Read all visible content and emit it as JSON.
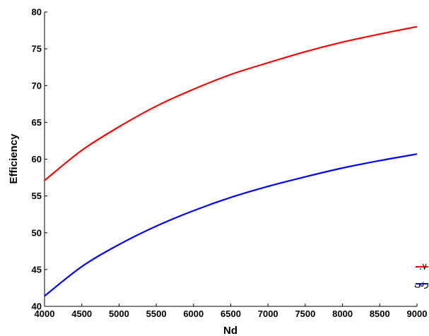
{
  "chart_data": {
    "type": "line",
    "title": "",
    "xlabel": "Nd",
    "ylabel": "Efficiency",
    "xlim": [
      4000,
      9000
    ],
    "ylim": [
      40,
      80
    ],
    "xticks": [
      4000,
      4500,
      5000,
      5500,
      6000,
      6500,
      7000,
      7500,
      8000,
      8500,
      9000
    ],
    "yticks": [
      40,
      45,
      50,
      55,
      60,
      65,
      70,
      75,
      80
    ],
    "grid": false,
    "legend_position": "bottom-right",
    "x": [
      4000,
      4500,
      5000,
      5500,
      6000,
      6500,
      7000,
      7500,
      8000,
      8500,
      9000
    ],
    "series": [
      {
        "name": "وجود مبدل حرارتی با ضریب عملکردی ۰.۷",
        "color": "#ff0000",
        "values": [
          57.1,
          61.2,
          64.4,
          67.2,
          69.5,
          71.5,
          73.1,
          74.6,
          75.9,
          77.0,
          78.0
        ]
      },
      {
        "name": "بدون وجودمبدل حرارتی",
        "color": "#0000ff",
        "values": [
          41.4,
          45.4,
          48.4,
          50.9,
          53.0,
          54.8,
          56.3,
          57.6,
          58.8,
          59.8,
          60.7
        ]
      }
    ]
  }
}
